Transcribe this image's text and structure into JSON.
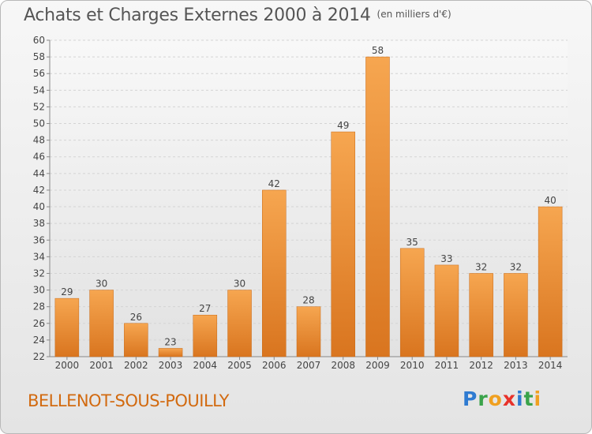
{
  "header": {
    "title": "Achats et Charges Externes 2000 à 2014",
    "units": "(en milliers d'€)"
  },
  "footer": {
    "commune": "BELLENOT-SOUS-POUILLY",
    "logo_letters": [
      "P",
      "r",
      "o",
      "x",
      "i",
      "t",
      "i"
    ],
    "logo_colors": [
      "#2f7bd1",
      "#3aa34a",
      "#f0a020",
      "#e8322a",
      "#2f7bd1",
      "#3aa34a",
      "#f0a020"
    ]
  },
  "chart_data": {
    "type": "bar",
    "categories": [
      "2000",
      "2001",
      "2002",
      "2003",
      "2004",
      "2005",
      "2006",
      "2007",
      "2008",
      "2009",
      "2010",
      "2011",
      "2012",
      "2013",
      "2014"
    ],
    "values": [
      29,
      30,
      26,
      23,
      27,
      30,
      42,
      28,
      49,
      58,
      35,
      33,
      32,
      32,
      40
    ],
    "data_labels": [
      "29",
      "30",
      "26",
      "23",
      "27",
      "30",
      "42",
      "28",
      "49",
      "58",
      "35",
      "33",
      "32",
      "32",
      "40"
    ],
    "ylim": [
      22,
      60
    ],
    "yticks": [
      "22",
      "24",
      "26",
      "28",
      "30",
      "32",
      "34",
      "36",
      "38",
      "40",
      "42",
      "44",
      "46",
      "48",
      "50",
      "52",
      "54",
      "56",
      "58",
      "60"
    ],
    "grid": true,
    "bar_color": "#f0922f",
    "title": "Achats et Charges Externes 2000 à 2014",
    "xlabel": "",
    "ylabel": ""
  }
}
